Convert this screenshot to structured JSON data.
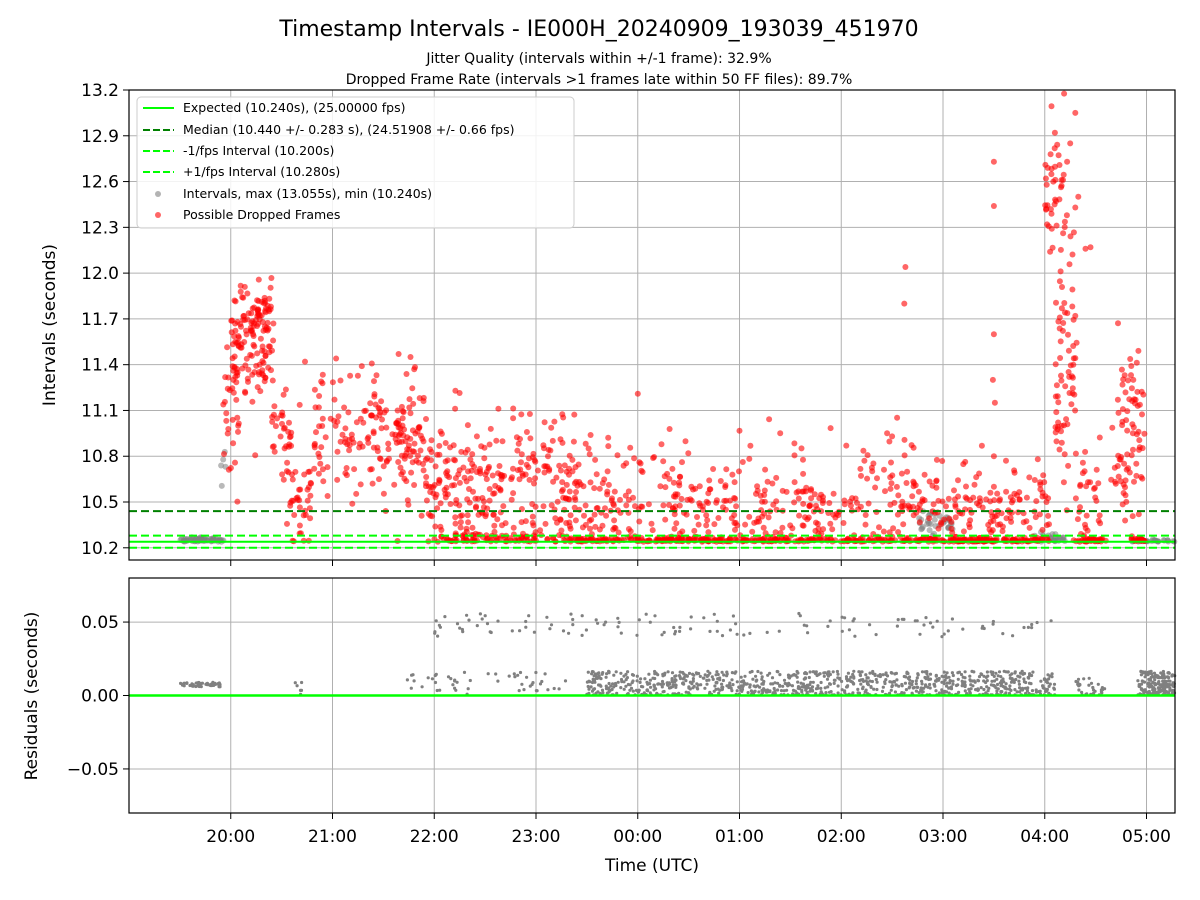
{
  "chart_data": [
    {
      "type": "scatter",
      "title": "Timestamp Intervals - IE000H_20240909_193039_451970",
      "subtitle_1": "Jitter Quality (intervals within +/-1 frame): 32.9%",
      "subtitle_2": "Dropped Frame Rate (intervals >1 frames late within 50 FF files): 89.7%",
      "xlabel": "",
      "ylabel": "Intervals (seconds)",
      "xlim_hours": [
        19.0,
        29.28
      ],
      "ylim": [
        10.12,
        13.2
      ],
      "y_ticks": [
        10.2,
        10.5,
        10.8,
        11.1,
        11.4,
        11.7,
        12.0,
        12.3,
        12.6,
        12.9,
        13.2
      ],
      "y_tick_labels": [
        "10.2",
        "10.5",
        "10.8",
        "11.1",
        "11.4",
        "11.7",
        "12.0",
        "12.3",
        "12.6",
        "12.9",
        "13.2"
      ],
      "grid": true,
      "legend_position": "top-left",
      "reference_lines": [
        {
          "label": "Expected (10.240s), (25.00000 fps)",
          "y": 10.24,
          "color": "#00ff00",
          "style": "solid"
        },
        {
          "label": "Median (10.440 +/- 0.283 s), (24.51908 +/- 0.66 fps)",
          "y": 10.44,
          "color": "#008000",
          "style": "dashed"
        },
        {
          "label": "-1/fps Interval (10.200s)",
          "y": 10.2,
          "color": "#00ff00",
          "style": "dashed"
        },
        {
          "label": "+1/fps Interval (10.280s)",
          "y": 10.28,
          "color": "#00ff00",
          "style": "dashed"
        }
      ],
      "series": [
        {
          "name": "Intervals, max (13.055s), min (10.240s)",
          "color": "#808080",
          "kind": "scatter",
          "clusters": [
            {
              "x_start": 19.5,
              "x_end": 19.93,
              "y_center": 10.25,
              "spread": 0.01,
              "count": 60
            },
            {
              "x_start": 19.9,
              "x_end": 19.95,
              "y_center": 10.7,
              "spread": 0.08,
              "count": 5
            },
            {
              "x_start": 26.75,
              "x_end": 27.1,
              "y_center": 10.36,
              "spread": 0.04,
              "count": 35
            },
            {
              "x_start": 27.9,
              "x_end": 28.2,
              "y_center": 10.26,
              "spread": 0.02,
              "count": 25
            },
            {
              "x_start": 28.85,
              "x_end": 29.28,
              "y_center": 10.245,
              "spread": 0.005,
              "count": 30
            }
          ]
        },
        {
          "name": "Possible Dropped Frames",
          "color": "#ff0000",
          "kind": "scatter",
          "clusters": [
            {
              "x_start": 19.92,
              "x_end": 20.08,
              "y_center": 11.1,
              "spread": 0.25,
              "count": 25
            },
            {
              "x_start": 20.0,
              "x_end": 20.42,
              "y_center": 11.5,
              "spread": 0.18,
              "count": 120
            },
            {
              "x_start": 20.12,
              "x_end": 20.4,
              "y_center": 11.75,
              "spread": 0.1,
              "count": 30
            },
            {
              "x_start": 20.4,
              "x_end": 20.6,
              "y_center": 11.0,
              "spread": 0.12,
              "count": 25
            },
            {
              "x_start": 20.5,
              "x_end": 20.8,
              "y_center": 10.5,
              "spread": 0.18,
              "count": 45
            },
            {
              "x_start": 20.8,
              "x_end": 21.9,
              "y_center": 10.95,
              "spread": 0.2,
              "count": 190
            },
            {
              "x_start": 21.9,
              "x_end": 23.4,
              "y_center": 10.65,
              "spread": 0.22,
              "count": 260
            },
            {
              "x_start": 22.0,
              "x_end": 23.5,
              "y_center": 10.26,
              "spread": 0.02,
              "count": 90
            },
            {
              "x_start": 23.3,
              "x_end": 27.0,
              "y_center": 10.45,
              "spread": 0.16,
              "count": 380
            },
            {
              "x_start": 23.4,
              "x_end": 27.0,
              "y_center": 10.25,
              "spread": 0.01,
              "count": 260
            },
            {
              "x_start": 23.5,
              "x_end": 26.8,
              "y_center": 10.8,
              "spread": 0.1,
              "count": 40
            },
            {
              "x_start": 27.0,
              "x_end": 28.05,
              "y_center": 10.45,
              "spread": 0.15,
              "count": 120
            },
            {
              "x_start": 27.05,
              "x_end": 28.05,
              "y_center": 10.25,
              "spread": 0.01,
              "count": 100
            },
            {
              "x_start": 28.0,
              "x_end": 28.2,
              "y_center": 12.55,
              "spread": 0.25,
              "count": 40
            },
            {
              "x_start": 28.1,
              "x_end": 28.32,
              "y_center": 11.5,
              "spread": 0.45,
              "count": 70
            },
            {
              "x_start": 28.28,
              "x_end": 28.55,
              "y_center": 10.4,
              "spread": 0.2,
              "count": 40
            },
            {
              "x_start": 28.35,
              "x_end": 28.6,
              "y_center": 10.25,
              "spread": 0.01,
              "count": 25
            },
            {
              "x_start": 28.65,
              "x_end": 28.98,
              "y_center": 10.9,
              "spread": 0.3,
              "count": 75
            },
            {
              "x_start": 28.85,
              "x_end": 29.0,
              "y_center": 10.25,
              "spread": 0.01,
              "count": 20
            }
          ],
          "points": [
            [
              26.63,
              12.04
            ],
            [
              26.62,
              11.8
            ],
            [
              27.5,
              12.73
            ],
            [
              27.5,
              12.44
            ],
            [
              27.5,
              11.6
            ],
            [
              27.49,
              11.3
            ],
            [
              27.51,
              11.15
            ],
            [
              20.73,
              11.42
            ],
            [
              21.65,
              11.47
            ],
            [
              24.0,
              11.21
            ],
            [
              25.4,
              10.95
            ],
            [
              26.05,
              10.87
            ],
            [
              26.5,
              10.93
            ],
            [
              28.3,
              13.05
            ],
            [
              28.1,
              12.92
            ],
            [
              28.25,
              12.85
            ],
            [
              28.22,
              12.73
            ],
            [
              28.33,
              12.5
            ],
            [
              28.45,
              12.17
            ],
            [
              28.4,
              12.16
            ],
            [
              28.3,
              12.43
            ],
            [
              28.92,
              11.49
            ],
            [
              28.87,
              11.3
            ],
            [
              27.5,
              10.8
            ],
            [
              27.5,
              10.6
            ]
          ]
        }
      ]
    },
    {
      "type": "scatter",
      "xlabel": "Time (UTC)",
      "ylabel": "Residuals (seconds)",
      "xlim_hours": [
        19.0,
        29.28
      ],
      "ylim": [
        -0.08,
        0.08
      ],
      "y_ticks": [
        -0.05,
        0.0,
        0.05
      ],
      "y_tick_labels": [
        "−0.05",
        "0.00",
        "0.05"
      ],
      "x_ticks_hours": [
        20,
        21,
        22,
        23,
        24,
        25,
        26,
        27,
        28,
        29
      ],
      "x_tick_labels": [
        "20:00",
        "21:00",
        "22:00",
        "23:00",
        "00:00",
        "01:00",
        "02:00",
        "03:00",
        "04:00",
        "05:00"
      ],
      "grid": true,
      "reference_lines": [
        {
          "y": 0.0,
          "color": "#00ff00",
          "style": "solid"
        }
      ],
      "series": [
        {
          "color": "#808080",
          "kind": "scatter",
          "clusters": [
            {
              "x_start": 19.5,
              "x_end": 19.9,
              "y_center": 0.0075,
              "spread": 0.0015,
              "count": 50
            },
            {
              "x_start": 20.6,
              "x_end": 20.7,
              "y_center": 0.005,
              "spread": 0.005,
              "count": 6
            },
            {
              "x_start": 21.7,
              "x_end": 23.3,
              "y_center": 0.008,
              "spread": 0.008,
              "count": 50
            },
            {
              "x_start": 23.5,
              "x_end": 28.1,
              "y_center": 0.008,
              "spread": 0.0085,
              "count": 900
            },
            {
              "x_start": 28.3,
              "x_end": 28.6,
              "y_center": 0.006,
              "spread": 0.006,
              "count": 30
            },
            {
              "x_start": 28.9,
              "x_end": 29.28,
              "y_center": 0.008,
              "spread": 0.0085,
              "count": 180
            },
            {
              "x_start": 22.0,
              "x_end": 28.1,
              "y_center": 0.048,
              "spread": 0.008,
              "count": 120
            }
          ]
        }
      ]
    }
  ]
}
